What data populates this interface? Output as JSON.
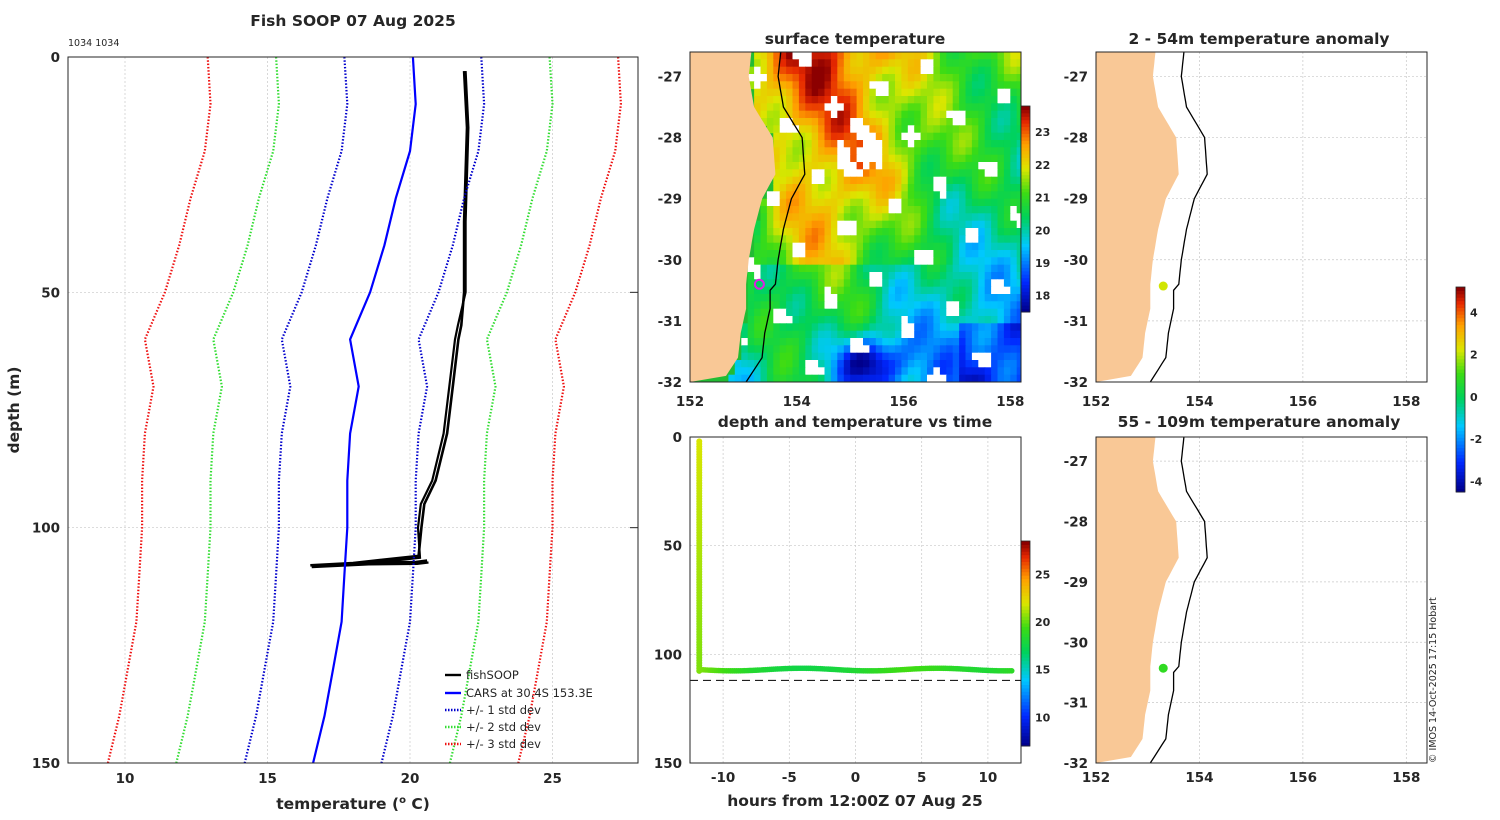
{
  "header": {
    "title": "Fish SOOP 07 Aug 2025",
    "profile_ids": "1034 1034",
    "copyright": "© IMOS 14-Oct-2025 17:15 Hobart"
  },
  "colors": {
    "fishsoop": "#000000",
    "cars": "#0000ff",
    "std1": "#0000cc",
    "std2": "#33dd33",
    "std3": "#ee1111",
    "land": "#f9c896",
    "marker_ring": "#e020e0",
    "dashed_line": "#000000"
  },
  "chart_data": [
    {
      "id": "profile",
      "type": "line",
      "title": "Fish SOOP 07 Aug 2025",
      "xlabel": "temperature (",
      "xlabel_sup": "o",
      "xlabel_tail": " C)",
      "ylabel": "depth (m)",
      "xlim": [
        8,
        28
      ],
      "ylim": [
        0,
        150
      ],
      "y_inverted": true,
      "grid": true,
      "legend_position": "bottom-right",
      "xticks": [
        10,
        15,
        20,
        25
      ],
      "yticks": [
        0,
        50,
        100,
        150
      ],
      "depth": [
        0,
        10,
        20,
        30,
        40,
        50,
        60,
        70,
        80,
        90,
        100,
        110,
        120,
        130,
        140,
        150
      ],
      "series": [
        {
          "name": "fishSOOP",
          "style": "solid",
          "color_key": "fishsoop",
          "points": [
            [
              21.9,
              3
            ],
            [
              22.0,
              15
            ],
            [
              21.9,
              35
            ],
            [
              21.9,
              50
            ],
            [
              21.8,
              57
            ],
            [
              21.7,
              60
            ],
            [
              21.5,
              70
            ],
            [
              21.3,
              80
            ],
            [
              20.9,
              90
            ],
            [
              20.5,
              95
            ],
            [
              20.4,
              100
            ],
            [
              20.3,
              106
            ],
            [
              18.0,
              107.5
            ],
            [
              16.5,
              108
            ],
            [
              18.5,
              107.4
            ],
            [
              20.2,
              107.3
            ],
            [
              20.6,
              107
            ]
          ]
        },
        {
          "name": "CARS at 30.4S 153.3E",
          "style": "solid",
          "color_key": "cars",
          "values": [
            20.1,
            20.2,
            20.0,
            19.5,
            19.1,
            18.6,
            17.9,
            18.2,
            17.9,
            17.8,
            17.8,
            17.7,
            17.6,
            17.3,
            17.0,
            16.6
          ]
        },
        {
          "name": "+/- 1 std dev",
          "style": "dotted",
          "color_key": "std1",
          "lower": [
            17.7,
            17.8,
            17.6,
            17.1,
            16.7,
            16.2,
            15.5,
            15.8,
            15.5,
            15.4,
            15.4,
            15.3,
            15.2,
            14.9,
            14.6,
            14.2
          ],
          "upper": [
            22.5,
            22.6,
            22.4,
            21.9,
            21.5,
            21.0,
            20.3,
            20.6,
            20.3,
            20.2,
            20.2,
            20.1,
            20.0,
            19.7,
            19.4,
            19.0
          ]
        },
        {
          "name": "+/- 2 std dev",
          "style": "dotted",
          "color_key": "std2",
          "lower": [
            15.3,
            15.4,
            15.2,
            14.7,
            14.3,
            13.8,
            13.1,
            13.4,
            13.1,
            13.0,
            13.0,
            12.9,
            12.8,
            12.5,
            12.2,
            11.8
          ],
          "upper": [
            24.9,
            25.0,
            24.8,
            24.3,
            23.9,
            23.4,
            22.7,
            23.0,
            22.7,
            22.6,
            22.6,
            22.5,
            22.4,
            22.1,
            21.8,
            21.4
          ]
        },
        {
          "name": "+/- 3 std dev",
          "style": "dotted",
          "color_key": "std3",
          "lower": [
            12.9,
            13.0,
            12.8,
            12.3,
            11.9,
            11.4,
            10.7,
            11.0,
            10.7,
            10.6,
            10.6,
            10.5,
            10.4,
            10.1,
            9.8,
            9.4
          ],
          "upper": [
            27.3,
            27.4,
            27.2,
            26.7,
            26.3,
            25.8,
            25.1,
            25.4,
            25.1,
            25.0,
            25.0,
            24.9,
            24.8,
            24.5,
            24.2,
            23.8
          ]
        }
      ]
    },
    {
      "id": "sst_map",
      "type": "heatmap",
      "title": "surface temperature",
      "xlim": [
        152,
        158.2
      ],
      "ylim": [
        -32,
        -26.6
      ],
      "xticks": [
        152,
        154,
        156,
        158
      ],
      "yticks": [
        -27,
        -28,
        -29,
        -30,
        -31,
        -32
      ],
      "colorbar": {
        "min": 17.5,
        "max": 23.8,
        "ticks": [
          18,
          19,
          20,
          21,
          22,
          23
        ]
      },
      "marker": {
        "lon": 153.3,
        "lat": -30.4
      }
    },
    {
      "id": "depth_time",
      "type": "scatter",
      "title": "depth and temperature vs time",
      "xlabel": "hours from 12:00Z 07 Aug 25",
      "xlim": [
        -12.5,
        12.5
      ],
      "ylim": [
        0,
        150
      ],
      "y_inverted": true,
      "xticks": [
        -10,
        -5,
        0,
        5,
        10
      ],
      "yticks": [
        0,
        50,
        100,
        150
      ],
      "bottom_depth_line": 112,
      "colorbar": {
        "min": 7,
        "max": 28.5,
        "ticks": [
          10,
          15,
          20,
          25
        ]
      },
      "vertical_segment": {
        "time": -11.8,
        "depth_from": 2,
        "depth_to": 108,
        "temp_top": 22.0,
        "temp_bottom": 20.5
      },
      "bottom_track": {
        "time_from": -11.8,
        "time_to": 11.8,
        "depth": 107,
        "temps": [
          20.6,
          19.5,
          18.5,
          17.9,
          17.6,
          17.8,
          18.3,
          19.0,
          19.6,
          19.2,
          18.6,
          18.2,
          18.8
        ]
      }
    },
    {
      "id": "anom_upper",
      "type": "scatter",
      "title": "2 - 54m temperature anomaly",
      "xlim": [
        152,
        158.4
      ],
      "ylim": [
        -32,
        -26.6
      ],
      "xticks": [
        152,
        154,
        156,
        158
      ],
      "yticks": [
        -27,
        -28,
        -29,
        -30,
        -31,
        -32
      ],
      "points": [
        {
          "lon": 153.3,
          "lat": -30.43,
          "anomaly": 2.2
        }
      ]
    },
    {
      "id": "anom_lower",
      "type": "scatter",
      "title": "55 - 109m temperature anomaly",
      "xlim": [
        152,
        158.4
      ],
      "ylim": [
        -32,
        -26.6
      ],
      "xticks": [
        152,
        154,
        156,
        158
      ],
      "yticks": [
        -27,
        -28,
        -29,
        -30,
        -31,
        -32
      ],
      "points": [
        {
          "lon": 153.3,
          "lat": -30.43,
          "anomaly": 0.9
        }
      ]
    },
    {
      "id": "anom_colorbar",
      "type": "colorbar",
      "min": -4.5,
      "max": 5.2,
      "ticks": [
        -4,
        -2,
        0,
        2,
        4
      ]
    }
  ]
}
